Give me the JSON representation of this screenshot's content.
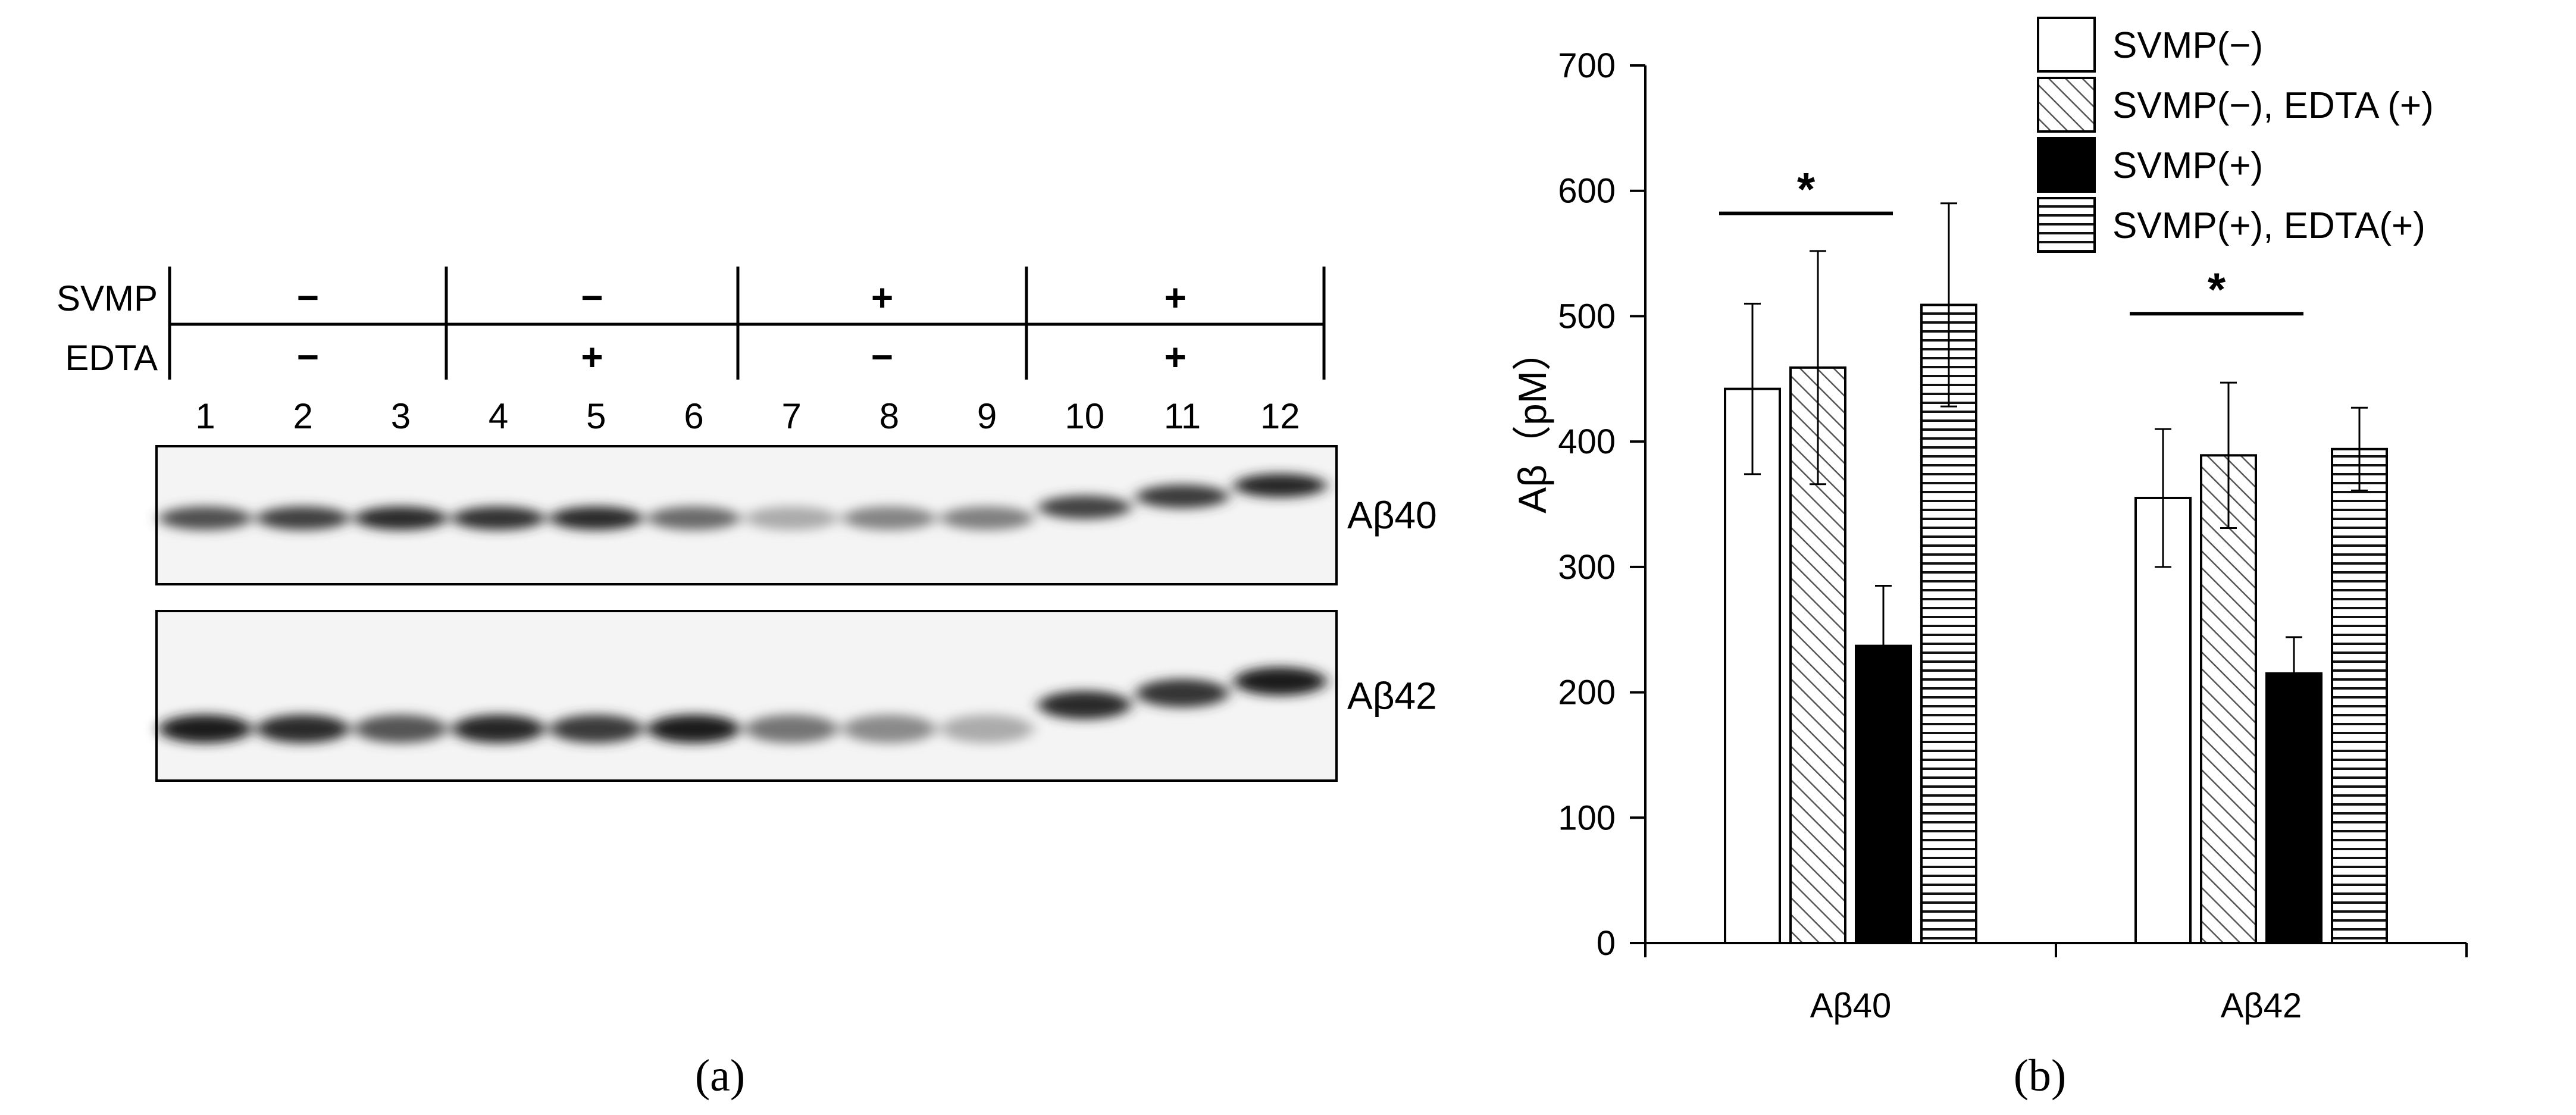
{
  "panel_a": {
    "label": "(a)",
    "conditions": {
      "row_labels": [
        "SVMP",
        "EDTA"
      ],
      "groups": [
        {
          "svmp": "−",
          "edta": "−"
        },
        {
          "svmp": "−",
          "edta": "+"
        },
        {
          "svmp": "+",
          "edta": "−"
        },
        {
          "svmp": "+",
          "edta": "+"
        }
      ]
    },
    "lanes": [
      "1",
      "2",
      "3",
      "4",
      "5",
      "6",
      "7",
      "8",
      "9",
      "10",
      "11",
      "12"
    ],
    "blots": [
      {
        "name": "Aβ40",
        "intensity": [
          0.72,
          0.8,
          0.9,
          0.86,
          0.9,
          0.6,
          0.3,
          0.48,
          0.5,
          0.78,
          0.82,
          0.92
        ]
      },
      {
        "name": "Aβ42",
        "intensity": [
          0.95,
          0.9,
          0.7,
          0.92,
          0.82,
          0.95,
          0.55,
          0.45,
          0.3,
          0.9,
          0.85,
          0.95
        ]
      }
    ]
  },
  "panel_b": {
    "label": "(b)",
    "significance_marker": "*"
  },
  "chart_data": {
    "type": "bar",
    "categories": [
      "Aβ40",
      "Aβ42"
    ],
    "ylabel": "Aβ（pM）",
    "ylim": [
      0,
      700
    ],
    "yticks": [
      0,
      100,
      200,
      300,
      400,
      500,
      600,
      700
    ],
    "grid": false,
    "legend_position": "top-right",
    "series": [
      {
        "name": "SVMP(−)",
        "pattern": "white",
        "values": [
          442,
          355
        ],
        "errors": [
          68,
          55
        ]
      },
      {
        "name": "SVMP(−), EDTA (+)",
        "pattern": "diagonal-hatch",
        "values": [
          459,
          389
        ],
        "errors": [
          93,
          58
        ]
      },
      {
        "name": "SVMP(+)",
        "pattern": "black",
        "values": [
          237,
          215
        ],
        "errors": [
          48,
          29
        ]
      },
      {
        "name": "SVMP(+), EDTA(+)",
        "pattern": "horizontal-lines",
        "values": [
          509,
          394
        ],
        "errors": [
          81,
          33
        ]
      }
    ],
    "significance": [
      {
        "category": "Aβ40",
        "from_series": 0,
        "to_series": 2,
        "y": 582,
        "label": "*"
      },
      {
        "category": "Aβ42",
        "from_series": 0,
        "to_series": 2,
        "y": 502,
        "label": "*"
      }
    ]
  }
}
